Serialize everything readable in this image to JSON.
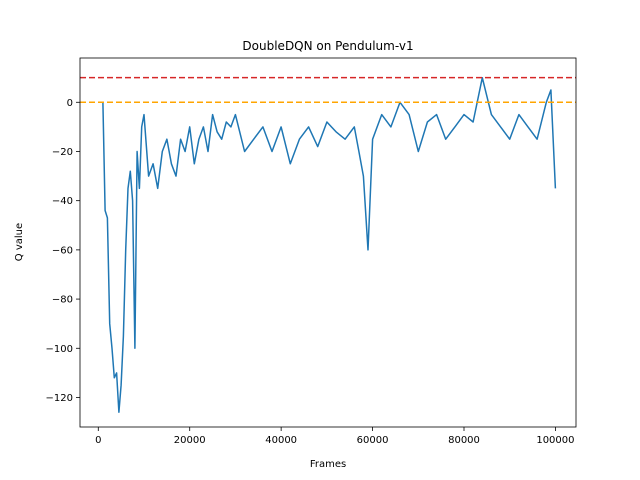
{
  "chart_data": {
    "type": "line",
    "title": "DoubleDQN on Pendulum-v1",
    "xlabel": "Frames",
    "ylabel": "Q value",
    "xlim": [
      -4000,
      104500
    ],
    "ylim": [
      -132,
      18
    ],
    "xticks": [
      0,
      20000,
      40000,
      60000,
      80000,
      100000
    ],
    "yticks": [
      -120,
      -100,
      -80,
      -60,
      -40,
      -20,
      0
    ],
    "grid": false,
    "hlines": [
      {
        "y": 10,
        "color": "#d62728",
        "style": "dashed"
      },
      {
        "y": 0,
        "color": "#ffa500",
        "style": "dashed"
      }
    ],
    "series": [
      {
        "color": "#1f77b4",
        "x": [
          1000,
          1500,
          2000,
          2500,
          3000,
          3500,
          4000,
          4500,
          5000,
          5500,
          6000,
          6500,
          7000,
          7500,
          8000,
          8500,
          9000,
          9500,
          10000,
          11000,
          12000,
          13000,
          14000,
          15000,
          16000,
          17000,
          18000,
          19000,
          20000,
          21000,
          22000,
          23000,
          24000,
          25000,
          26000,
          27000,
          28000,
          29000,
          30000,
          32000,
          34000,
          36000,
          38000,
          40000,
          42000,
          44000,
          46000,
          48000,
          50000,
          52000,
          54000,
          56000,
          57000,
          58000,
          59000,
          60000,
          62000,
          64000,
          66000,
          68000,
          70000,
          72000,
          74000,
          76000,
          78000,
          80000,
          82000,
          84000,
          86000,
          88000,
          90000,
          92000,
          94000,
          96000,
          98000,
          99000,
          100000
        ],
        "values": [
          0,
          -44,
          -47,
          -90,
          -100,
          -112,
          -110,
          -126,
          -115,
          -95,
          -60,
          -35,
          -28,
          -40,
          -100,
          -20,
          -35,
          -10,
          -5,
          -30,
          -25,
          -35,
          -20,
          -15,
          -25,
          -30,
          -15,
          -20,
          -10,
          -25,
          -15,
          -10,
          -20,
          -5,
          -12,
          -15,
          -8,
          -10,
          -5,
          -20,
          -15,
          -10,
          -20,
          -10,
          -25,
          -15,
          -10,
          -18,
          -8,
          -12,
          -15,
          -10,
          -20,
          -30,
          -60,
          -15,
          -5,
          -10,
          0,
          -5,
          -20,
          -8,
          -5,
          -15,
          -10,
          -5,
          -8,
          10,
          -5,
          -10,
          -15,
          -5,
          -10,
          -15,
          0,
          5,
          -35
        ]
      }
    ]
  }
}
